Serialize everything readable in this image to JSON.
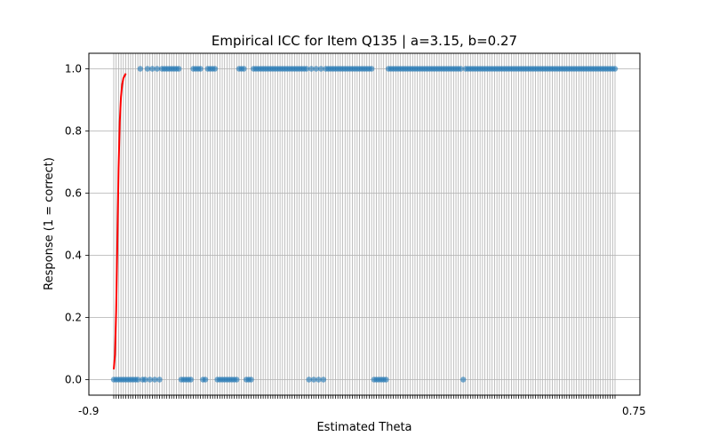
{
  "chart_data": {
    "type": "scatter",
    "title": "Empirical ICC for Item Q135 | a=3.15, b=0.27",
    "xlabel": "Estimated Theta",
    "ylabel": "Response (1 = correct)",
    "ylim": [
      -0.05,
      1.05
    ],
    "yticks": [
      "0.0",
      "0.2",
      "0.4",
      "0.6",
      "0.8",
      "1.0"
    ],
    "grid": true,
    "x_axis_note": "categorical theta axis with one tick per observation; tick labels overlap and are illegible",
    "xtick_label_first": "-0.9",
    "xtick_label_last": "0.75",
    "series": [
      {
        "kind": "points",
        "color": "#1f77b4",
        "y_values_ordered_by_x": [
          0,
          0,
          0,
          0,
          0,
          0,
          0,
          0,
          0,
          0,
          0,
          1,
          0,
          0,
          1,
          0,
          1,
          0,
          1,
          0,
          1,
          1,
          1,
          1,
          1,
          1,
          1,
          1,
          0,
          0,
          0,
          0,
          0,
          1,
          1,
          1,
          1,
          0,
          0,
          1,
          1,
          1,
          1,
          0,
          0,
          0,
          0,
          0,
          0,
          0,
          0,
          0,
          1,
          1,
          1,
          0,
          0,
          0,
          1,
          1,
          1,
          1,
          1,
          1,
          1,
          1,
          1,
          1,
          1,
          1,
          1,
          1,
          1,
          1,
          1,
          1,
          1,
          1,
          1,
          1,
          1,
          0,
          1,
          0,
          1,
          0,
          1,
          0,
          1,
          1,
          1,
          1,
          1,
          1,
          1,
          1,
          1,
          1,
          1,
          1,
          1,
          1,
          1,
          1,
          1,
          1,
          1,
          1,
          0,
          0,
          0,
          0,
          0,
          0,
          1,
          1,
          1,
          1,
          1,
          1,
          1,
          1,
          1,
          1,
          1,
          1,
          1,
          1,
          1,
          1,
          1,
          1,
          1,
          1,
          1,
          1,
          1,
          1,
          1,
          1,
          1,
          1,
          1,
          1,
          1,
          0,
          1,
          1,
          1,
          1,
          1,
          1,
          1,
          1,
          1,
          1,
          1,
          1,
          1,
          1,
          1,
          1,
          1,
          1,
          1,
          1,
          1,
          1,
          1,
          1,
          1,
          1,
          1,
          1,
          1,
          1,
          1,
          1,
          1,
          1,
          1,
          1,
          1,
          1,
          1,
          1,
          1,
          1,
          1,
          1,
          1,
          1,
          1,
          1,
          1,
          1,
          1,
          1,
          1,
          1,
          1,
          1,
          1,
          1,
          1,
          1,
          1,
          1,
          1
        ]
      },
      {
        "kind": "line",
        "color": "#ff0000",
        "x_index": [
          0,
          0.5,
          1,
          1.5,
          2,
          2.5,
          3,
          3.5,
          4,
          5
        ],
        "y": [
          0.033,
          0.08,
          0.22,
          0.45,
          0.68,
          0.83,
          0.91,
          0.95,
          0.97,
          0.985
        ]
      }
    ]
  }
}
